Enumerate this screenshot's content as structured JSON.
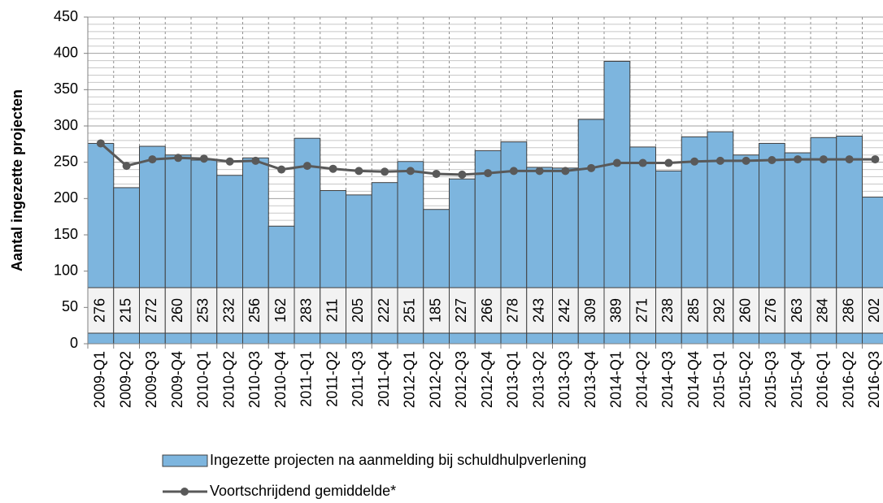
{
  "chart_data": {
    "type": "bar-line",
    "y_axis_label": "Aantal ingezette projecten",
    "categories": [
      "2009-Q1",
      "2009-Q2",
      "2009-Q3",
      "2009-Q4",
      "2010-Q1",
      "2010-Q2",
      "2010-Q3",
      "2010-Q4",
      "2011-Q1",
      "2011-Q2",
      "2011-Q3",
      "2011-Q4",
      "2012-Q1",
      "2012-Q2",
      "2012-Q3",
      "2012-Q4",
      "2013-Q1",
      "2013-Q2",
      "2013-Q3",
      "2013-Q4",
      "2014-Q1",
      "2014-Q2",
      "2014-Q3",
      "2014-Q4",
      "2015-Q1",
      "2015-Q2",
      "2015-Q3",
      "2015-Q4",
      "2016-Q1",
      "2016-Q2",
      "2016-Q3"
    ],
    "series": [
      {
        "name": "Ingezette projecten na aanmelding bij schuldhulpverlening",
        "type": "bar",
        "color": "#7db5de",
        "values": [
          276,
          215,
          272,
          260,
          253,
          232,
          256,
          162,
          283,
          211,
          205,
          222,
          251,
          185,
          227,
          266,
          278,
          243,
          242,
          309,
          389,
          271,
          238,
          285,
          292,
          260,
          276,
          263,
          284,
          286,
          202
        ]
      },
      {
        "name": "Voortschrijdend gemiddelde*",
        "type": "line",
        "color": "#595959",
        "values": [
          276,
          245,
          254,
          256,
          255,
          251,
          252,
          240,
          245,
          241,
          238,
          237,
          238,
          234,
          233,
          235,
          238,
          238,
          238,
          242,
          249,
          249,
          249,
          251,
          252,
          252,
          253,
          254,
          254,
          254,
          254
        ]
      }
    ],
    "ylim": [
      0,
      450
    ],
    "yticks": [
      0,
      50,
      100,
      150,
      200,
      250,
      300,
      350,
      400,
      450
    ],
    "grid": true
  }
}
